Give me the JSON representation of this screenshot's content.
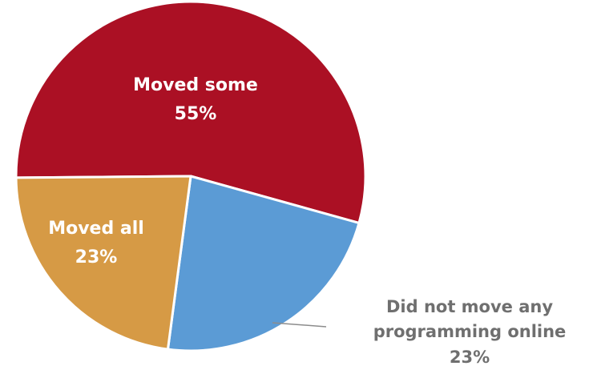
{
  "chart_data": {
    "type": "pie",
    "slices": [
      {
        "label": "Moved some",
        "value": 55,
        "value_text": "55%",
        "color": "#ab1024"
      },
      {
        "label": "Did not move any programming online",
        "label_lines": [
          "Did not move any",
          "programming online"
        ],
        "value": 23,
        "value_text": "23%",
        "color": "#5b9bd5"
      },
      {
        "label": "Moved all",
        "value": 23,
        "value_text": "23%",
        "color": "#d69a45"
      }
    ],
    "legend": "none",
    "outside_label_color": "#6f6f6f",
    "inside_label_color": "#ffffff"
  }
}
